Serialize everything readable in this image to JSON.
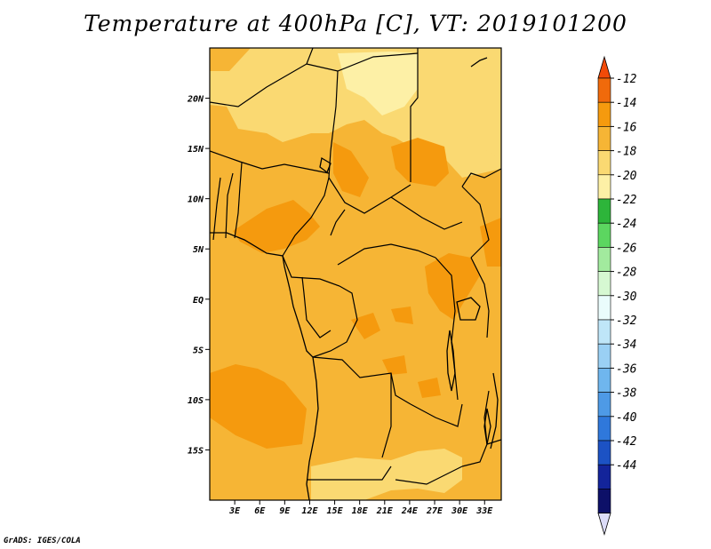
{
  "title": "Temperature at 400hPa [C], VT: 2019101200",
  "credit": "GrADS: IGES/COLA",
  "map": {
    "lon_range": [
      0,
      35
    ],
    "lat_range": [
      -20,
      25
    ],
    "lat_labels": [
      "20N",
      "15N",
      "10N",
      "5N",
      "EQ",
      "5S",
      "10S",
      "15S"
    ],
    "lon_labels": [
      "3E",
      "6E",
      "9E",
      "12E",
      "15E",
      "18E",
      "21E",
      "24E",
      "27E",
      "30E",
      "33E"
    ],
    "dominant_fill_levels": [
      "-14",
      "-16",
      "-18"
    ]
  },
  "colorbar": {
    "labels": [
      "-12",
      "-14",
      "-16",
      "-18",
      "-20",
      "-22",
      "-24",
      "-26",
      "-28",
      "-30",
      "-32",
      "-34",
      "-36",
      "-38",
      "-40",
      "-42",
      "-44"
    ],
    "colors": [
      "#f06a0b",
      "#f59a0e",
      "#f6b535",
      "#fad972",
      "#fdf0a6",
      "#2db53a",
      "#5cd660",
      "#a2ea9e",
      "#d6f8d2",
      "#eafcfc",
      "#bfe6f8",
      "#9ad0f4",
      "#6fb6ee",
      "#4e9ae6",
      "#2f78db",
      "#1c52c4",
      "#13249a",
      "#0d1068"
    ],
    "top_arrow_color": "#f24a08",
    "bottom_arrow_color": "#dcdcf8"
  }
}
